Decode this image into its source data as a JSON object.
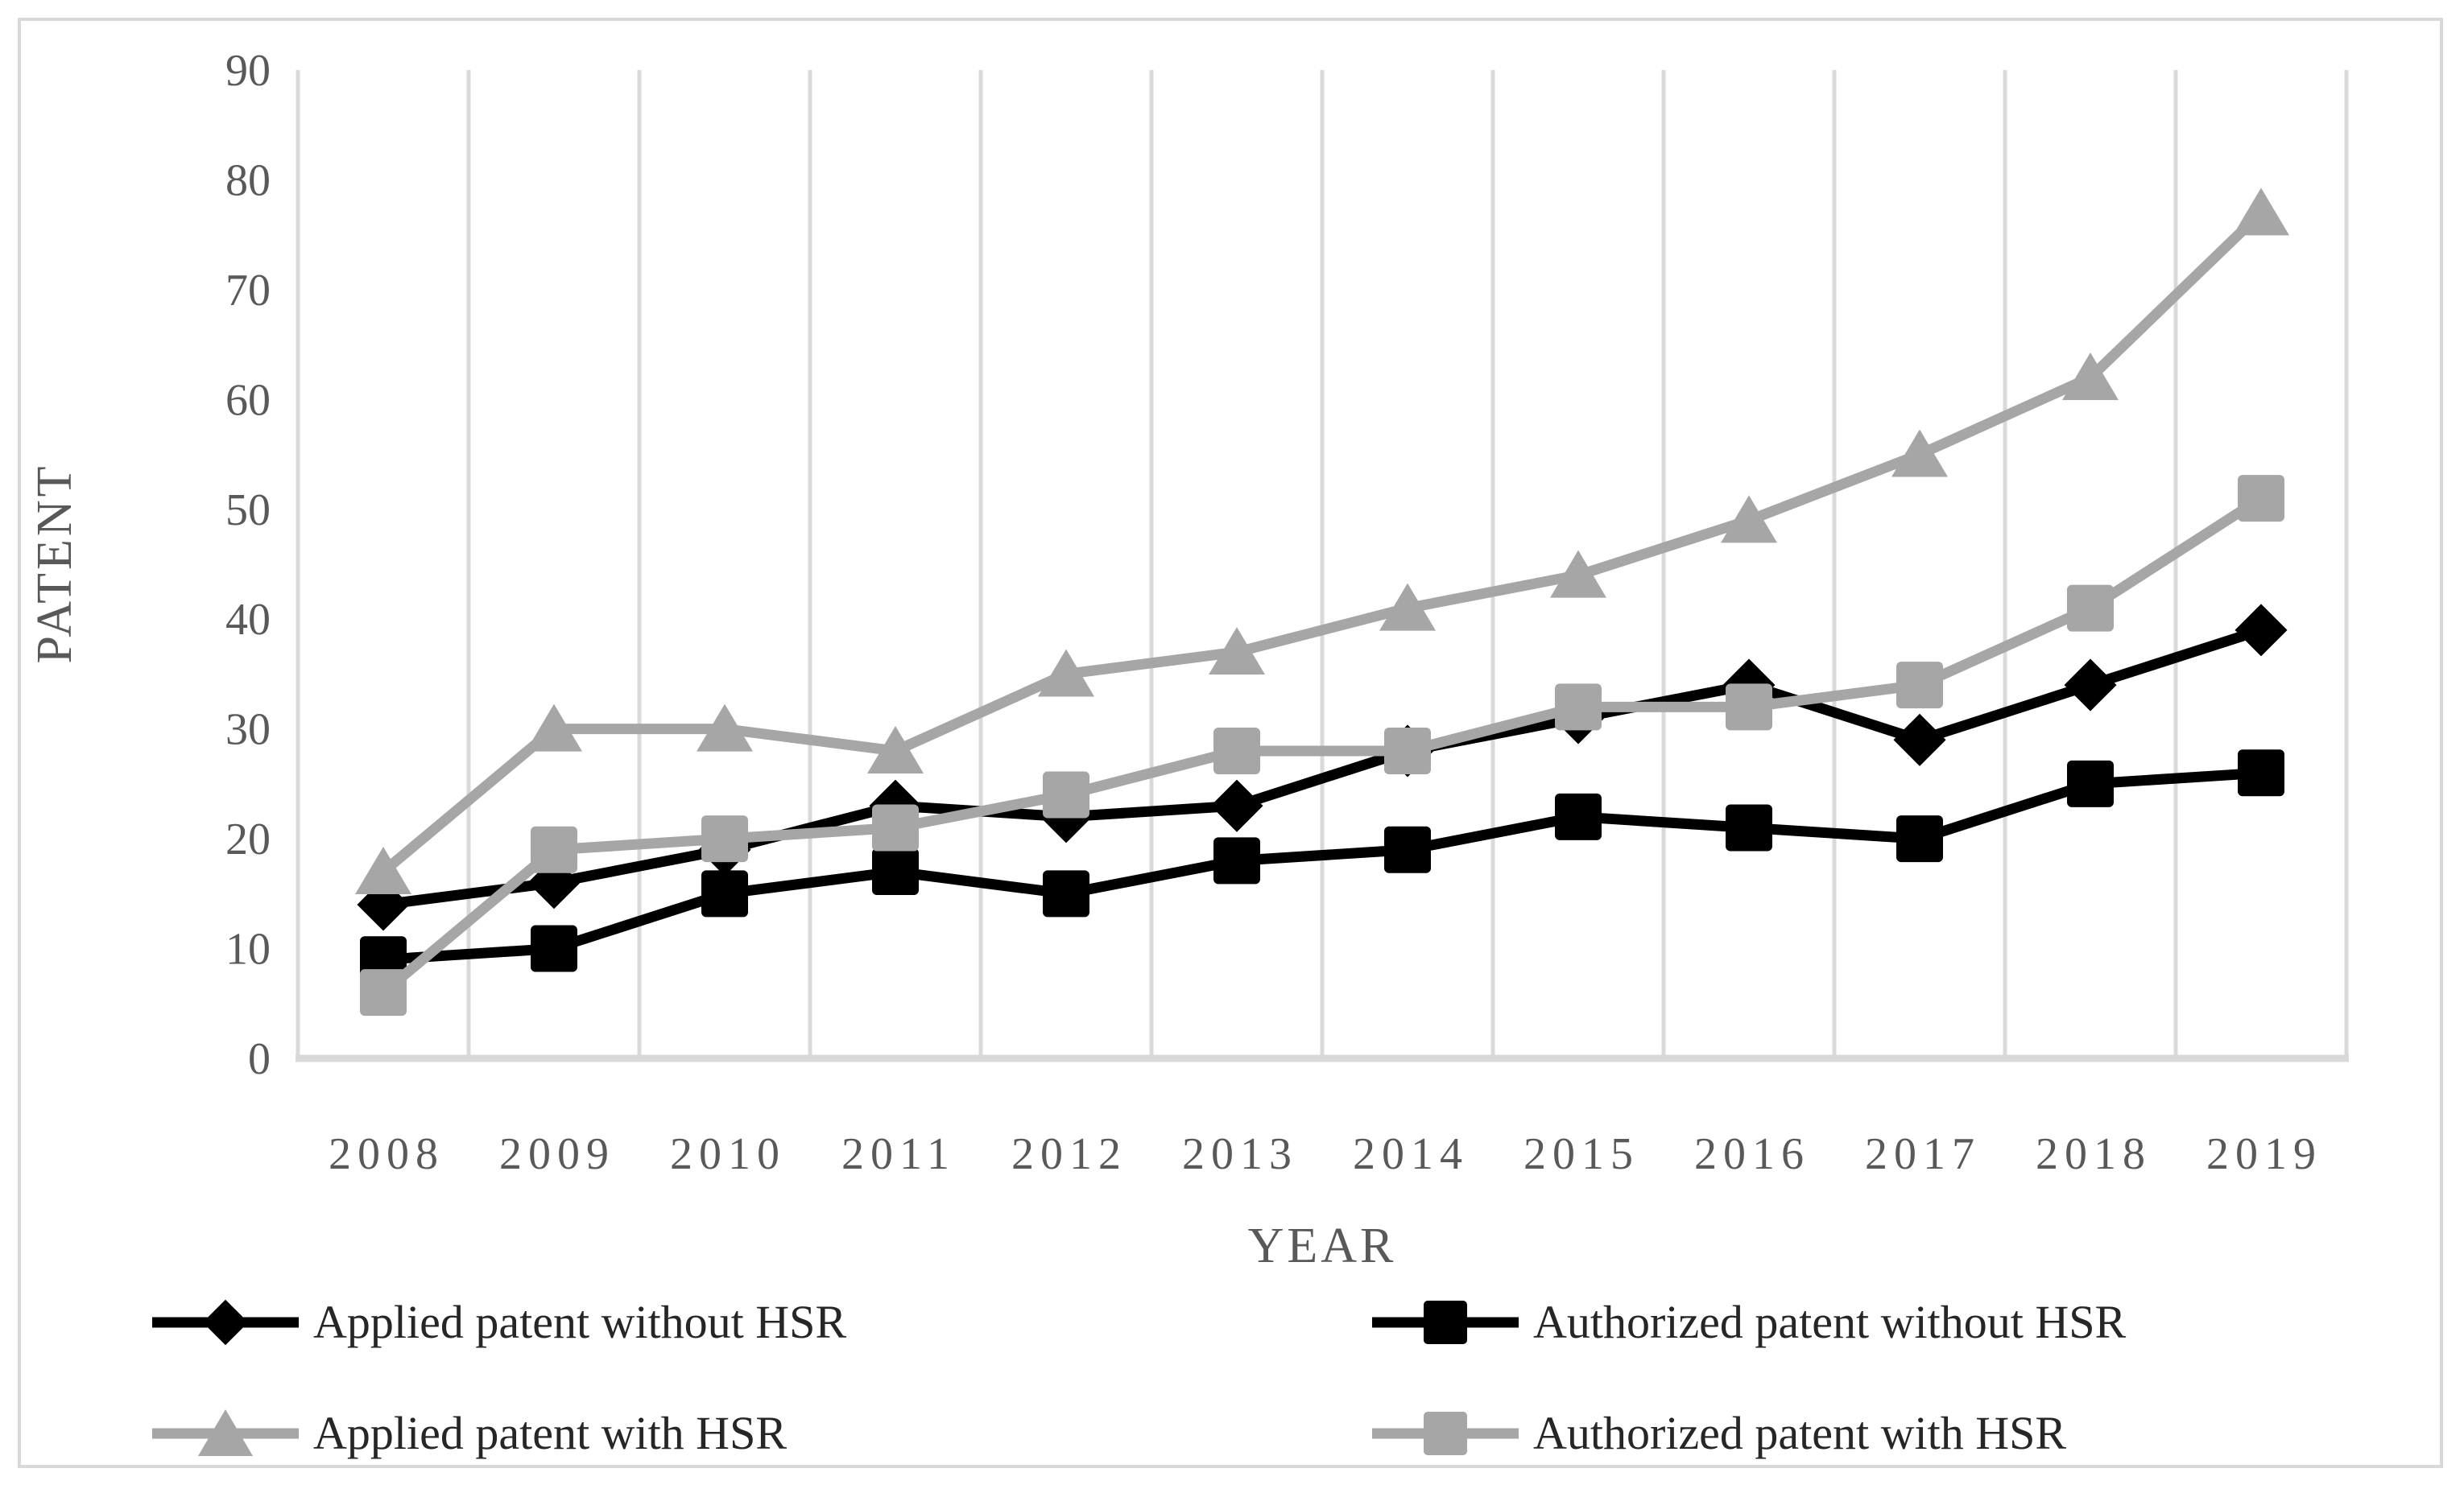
{
  "chart_data": {
    "type": "line",
    "title": "",
    "xlabel": "YEAR",
    "ylabel": "PATENT",
    "categories": [
      2008,
      2009,
      2010,
      2011,
      2012,
      2013,
      2014,
      2015,
      2016,
      2017,
      2018,
      2019
    ],
    "ylim": [
      0,
      90
    ],
    "yticks": [
      0,
      10,
      20,
      30,
      40,
      50,
      60,
      70,
      80,
      90
    ],
    "grid": "vertical-only",
    "legend_position": "bottom-two-rows",
    "series": [
      {
        "name": "Applied patent without HSR",
        "marker": "diamond",
        "color": "#000000",
        "values": [
          14,
          16,
          19,
          23,
          22,
          23,
          28,
          31,
          34,
          29,
          34,
          39
        ]
      },
      {
        "name": "Authorized patent without HSR",
        "marker": "square",
        "color": "#000000",
        "values": [
          9,
          10,
          15,
          17,
          15,
          18,
          19,
          22,
          21,
          20,
          25,
          26
        ]
      },
      {
        "name": "Applied patent with HSR",
        "marker": "triangle",
        "color": "#a6a6a6",
        "values": [
          17,
          30,
          30,
          28,
          35,
          37,
          41,
          44,
          49,
          55,
          62,
          77
        ]
      },
      {
        "name": "Authorized patent with HSR",
        "marker": "square",
        "color": "#a6a6a6",
        "values": [
          6,
          19,
          20,
          21,
          24,
          28,
          28,
          32,
          32,
          34,
          41,
          51
        ]
      }
    ],
    "colors": {
      "black_series": "#000000",
      "gray_series": "#a6a6a6",
      "gridline": "#d9d9d9",
      "axis_line": "#d9d9d9",
      "tick_label": "#595959",
      "legend_text": "#262626"
    }
  }
}
